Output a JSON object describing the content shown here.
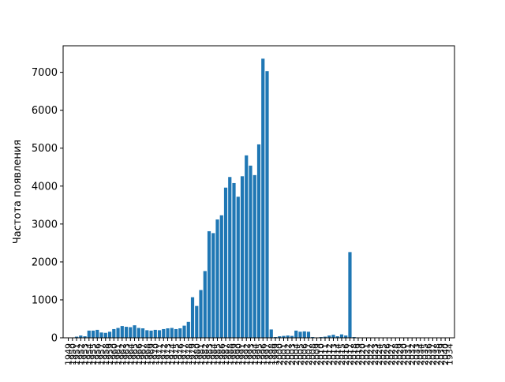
{
  "chart_data": {
    "type": "bar",
    "title": "",
    "xlabel": "",
    "ylabel": "Частота появления",
    "ylim": [
      0,
      7700
    ],
    "yticks": [
      0,
      1000,
      2000,
      3000,
      4000,
      5000,
      6000,
      7000
    ],
    "grid": false,
    "bar_color": "#1f77b4",
    "categories": [
      "1949",
      "1950",
      "1951",
      "1952",
      "1953",
      "1954",
      "1955",
      "1956",
      "1957",
      "1958",
      "1959",
      "1960",
      "1961",
      "1962",
      "1963",
      "1964",
      "1965",
      "1966",
      "1967",
      "1968",
      "1969",
      "1970",
      "1971",
      "1972",
      "1973",
      "1974",
      "1975",
      "1976",
      "1977",
      "1978",
      "1979",
      "1980",
      "1981",
      "1982",
      "1983",
      "1984",
      "1985",
      "1986",
      "1987",
      "1988",
      "1989",
      "1990",
      "1991",
      "1992",
      "1993",
      "1994",
      "1995",
      "1996",
      "1997",
      "1998",
      "1999",
      "2000",
      "2001",
      "2002",
      "2003",
      "2004",
      "2005",
      "2006",
      "2007",
      "2008",
      "2009",
      "2010",
      "2011",
      "2012",
      "2013",
      "2014",
      "2015",
      "2016",
      "2017",
      "2018",
      "2019",
      "2020",
      "2021",
      "2022",
      "2023",
      "2024",
      "2025",
      "2026",
      "2027",
      "2028",
      "2029",
      "2030",
      "2031",
      "2032",
      "2033",
      "2034",
      "2035",
      "2036",
      "2037",
      "2038",
      "2039",
      "2040",
      "1934"
    ],
    "values": [
      5,
      10,
      30,
      60,
      40,
      190,
      190,
      210,
      140,
      130,
      160,
      230,
      260,
      310,
      290,
      280,
      330,
      260,
      250,
      200,
      190,
      210,
      200,
      230,
      250,
      260,
      230,
      250,
      320,
      420,
      1070,
      840,
      1260,
      1760,
      2810,
      2760,
      3120,
      3230,
      3960,
      4240,
      4080,
      3720,
      4260,
      4810,
      4540,
      4290,
      5100,
      7360,
      7030,
      220,
      20,
      40,
      50,
      60,
      50,
      190,
      160,
      170,
      160,
      20,
      10,
      20,
      30,
      60,
      80,
      40,
      90,
      60,
      2260,
      20,
      5,
      3,
      3,
      3,
      3,
      3,
      3,
      3,
      3,
      3,
      3,
      3,
      3,
      3,
      3,
      3,
      3,
      3,
      3,
      3,
      3,
      3,
      3
    ]
  }
}
